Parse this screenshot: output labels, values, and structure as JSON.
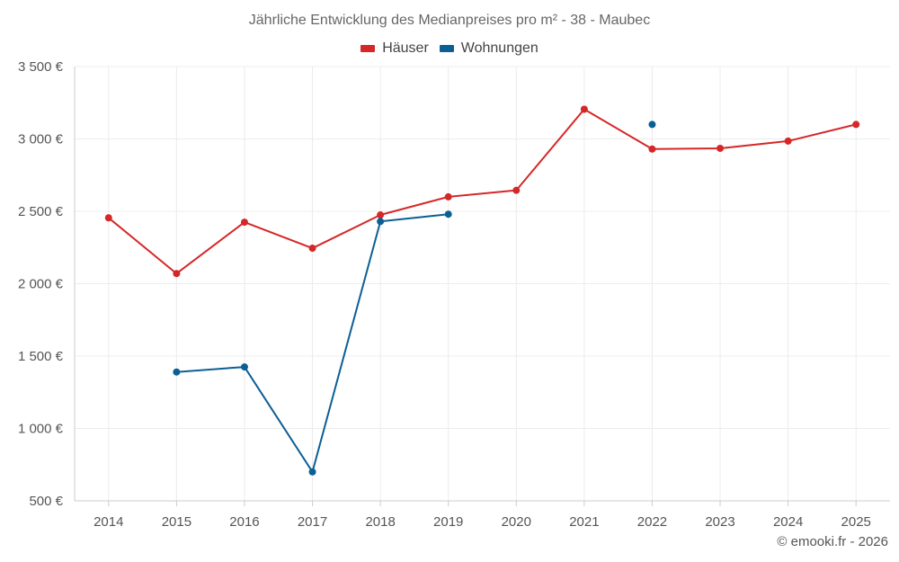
{
  "chart_data": {
    "type": "line",
    "title": "Jährliche Entwicklung des Medianpreises pro m² - 38 - Maubec",
    "categories": [
      "2014",
      "2015",
      "2016",
      "2017",
      "2018",
      "2019",
      "2020",
      "2021",
      "2022",
      "2023",
      "2024",
      "2025"
    ],
    "series": [
      {
        "name": "Häuser",
        "color": "#d62728",
        "values": [
          2455,
          2070,
          2425,
          2245,
          2475,
          2600,
          2645,
          3205,
          2930,
          2935,
          2985,
          3100
        ]
      },
      {
        "name": "Wohnungen",
        "color": "#0b5f95",
        "values": [
          null,
          1390,
          1425,
          700,
          2430,
          2480,
          null,
          null,
          3100,
          null,
          null,
          null
        ]
      }
    ],
    "ylim": [
      500,
      3500
    ],
    "yticks": [
      500,
      1000,
      1500,
      2000,
      2500,
      3000,
      3500
    ],
    "ytick_labels": [
      "500 €",
      "1 000 €",
      "1 500 €",
      "2 000 €",
      "2 500 €",
      "3 000 €",
      "3 500 €"
    ],
    "xlabel": "",
    "ylabel": "",
    "grid": true,
    "legend_position": "top-center"
  },
  "credit": "© emooki.fr - 2026"
}
